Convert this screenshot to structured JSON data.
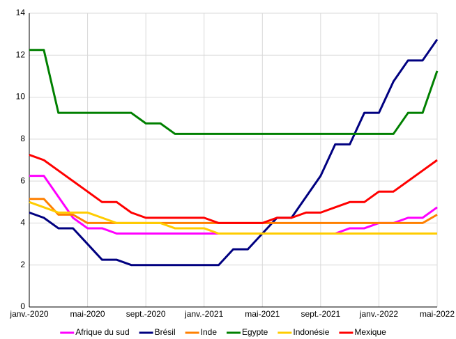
{
  "chart_data": {
    "type": "line",
    "categories": [
      "janv.-2020",
      null,
      null,
      null,
      "mai-2020",
      null,
      null,
      null,
      "sept.-2020",
      null,
      null,
      null,
      "janv.-2021",
      null,
      null,
      null,
      "mai-2021",
      null,
      null,
      null,
      "sept.-2021",
      null,
      null,
      null,
      "janv.-2022",
      null,
      null,
      null,
      "mai-2022"
    ],
    "series": [
      {
        "name": "Afrique du sud",
        "color": "#ff00ff",
        "values": [
          6.25,
          6.25,
          5.25,
          4.25,
          3.75,
          3.75,
          3.5,
          3.5,
          3.5,
          3.5,
          3.5,
          3.5,
          3.5,
          3.5,
          3.5,
          3.5,
          3.5,
          3.5,
          3.5,
          3.5,
          3.5,
          3.5,
          3.75,
          3.75,
          4.0,
          4.0,
          4.25,
          4.25,
          4.75
        ]
      },
      {
        "name": "Brésil",
        "color": "#000080",
        "values": [
          4.5,
          4.25,
          3.75,
          3.75,
          3.0,
          2.25,
          2.25,
          2.0,
          2.0,
          2.0,
          2.0,
          2.0,
          2.0,
          2.0,
          2.75,
          2.75,
          3.5,
          4.25,
          4.25,
          5.25,
          6.25,
          7.75,
          7.75,
          9.25,
          9.25,
          10.75,
          11.75,
          11.75,
          12.75
        ]
      },
      {
        "name": "Inde",
        "color": "#ff8000",
        "values": [
          5.15,
          5.15,
          4.4,
          4.4,
          4.0,
          4.0,
          4.0,
          4.0,
          4.0,
          4.0,
          4.0,
          4.0,
          4.0,
          4.0,
          4.0,
          4.0,
          4.0,
          4.0,
          4.0,
          4.0,
          4.0,
          4.0,
          4.0,
          4.0,
          4.0,
          4.0,
          4.0,
          4.0,
          4.4
        ]
      },
      {
        "name": "Egypte",
        "color": "#008000",
        "values": [
          12.25,
          12.25,
          9.25,
          9.25,
          9.25,
          9.25,
          9.25,
          9.25,
          8.75,
          8.75,
          8.25,
          8.25,
          8.25,
          8.25,
          8.25,
          8.25,
          8.25,
          8.25,
          8.25,
          8.25,
          8.25,
          8.25,
          8.25,
          8.25,
          8.25,
          8.25,
          9.25,
          9.25,
          11.25
        ]
      },
      {
        "name": "Indonésie",
        "color": "#ffcc00",
        "values": [
          5.0,
          4.75,
          4.5,
          4.5,
          4.5,
          4.25,
          4.0,
          4.0,
          4.0,
          4.0,
          3.75,
          3.75,
          3.75,
          3.5,
          3.5,
          3.5,
          3.5,
          3.5,
          3.5,
          3.5,
          3.5,
          3.5,
          3.5,
          3.5,
          3.5,
          3.5,
          3.5,
          3.5,
          3.5
        ]
      },
      {
        "name": "Mexique",
        "color": "#ff0000",
        "values": [
          7.25,
          7.0,
          6.5,
          6.0,
          5.5,
          5.0,
          5.0,
          4.5,
          4.25,
          4.25,
          4.25,
          4.25,
          4.25,
          4.0,
          4.0,
          4.0,
          4.0,
          4.25,
          4.25,
          4.5,
          4.5,
          4.75,
          5.0,
          5.0,
          5.5,
          5.5,
          6.0,
          6.5,
          7.0
        ]
      }
    ],
    "ylim": [
      0,
      14
    ],
    "yticks": [
      0,
      2,
      4,
      6,
      8,
      10,
      12,
      14
    ],
    "grid": true,
    "legend": "bottom"
  }
}
